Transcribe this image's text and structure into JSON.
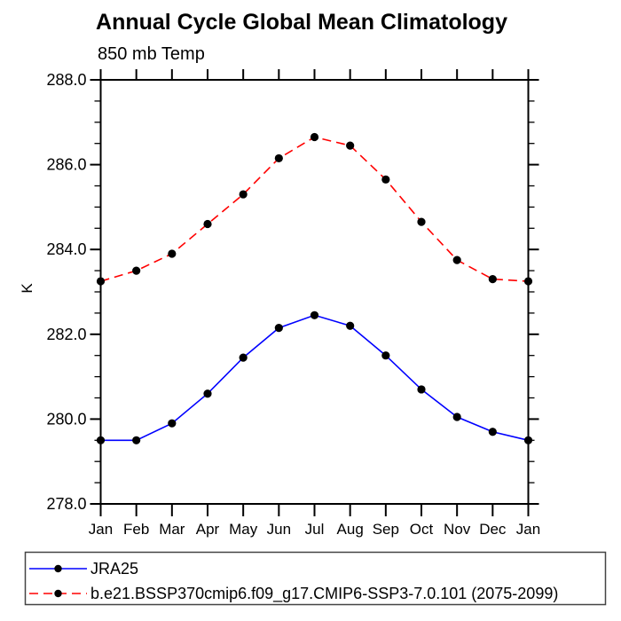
{
  "page": {
    "title": "Annual Cycle Global Mean Climatology",
    "subtitle": "850 mb Temp",
    "ylabel": "K"
  },
  "chart_data": {
    "type": "line",
    "title": "Annual Cycle Global Mean Climatology",
    "subtitle": "850 mb Temp",
    "xlabel": "",
    "ylabel": "K",
    "categories": [
      "Jan",
      "Feb",
      "Mar",
      "Apr",
      "May",
      "Jun",
      "Jul",
      "Aug",
      "Sep",
      "Oct",
      "Nov",
      "Dec",
      "Jan"
    ],
    "series": [
      {
        "name": "JRA25",
        "color": "#0000ff",
        "line_style": "solid",
        "marker": "filled-black-circle",
        "values": [
          279.5,
          279.5,
          279.9,
          280.6,
          281.45,
          282.15,
          282.45,
          282.2,
          281.5,
          280.7,
          280.05,
          279.7,
          279.5
        ]
      },
      {
        "name": "b.e21.BSSP370cmip6.f09_g17.CMIP6-SSP3-7.0.101 (2075-2099)",
        "color": "#ff0000",
        "line_style": "dashed",
        "marker": "filled-black-circle",
        "values": [
          283.25,
          283.5,
          283.9,
          284.6,
          285.3,
          286.15,
          286.65,
          286.45,
          285.65,
          284.65,
          283.75,
          283.3,
          283.25
        ]
      }
    ],
    "ylim": [
      278.0,
      288.0
    ],
    "y_major_ticks": [
      278.0,
      280.0,
      282.0,
      284.0,
      286.0,
      288.0
    ],
    "y_tick_labels": [
      "278.0",
      "280.0",
      "282.0",
      "284.0",
      "286.0",
      "288.0"
    ],
    "y_minor_step": 0.5,
    "grid": false,
    "legend_position": "bottom-left-box",
    "axis_color": "#000000",
    "marker_color": "#000000"
  }
}
